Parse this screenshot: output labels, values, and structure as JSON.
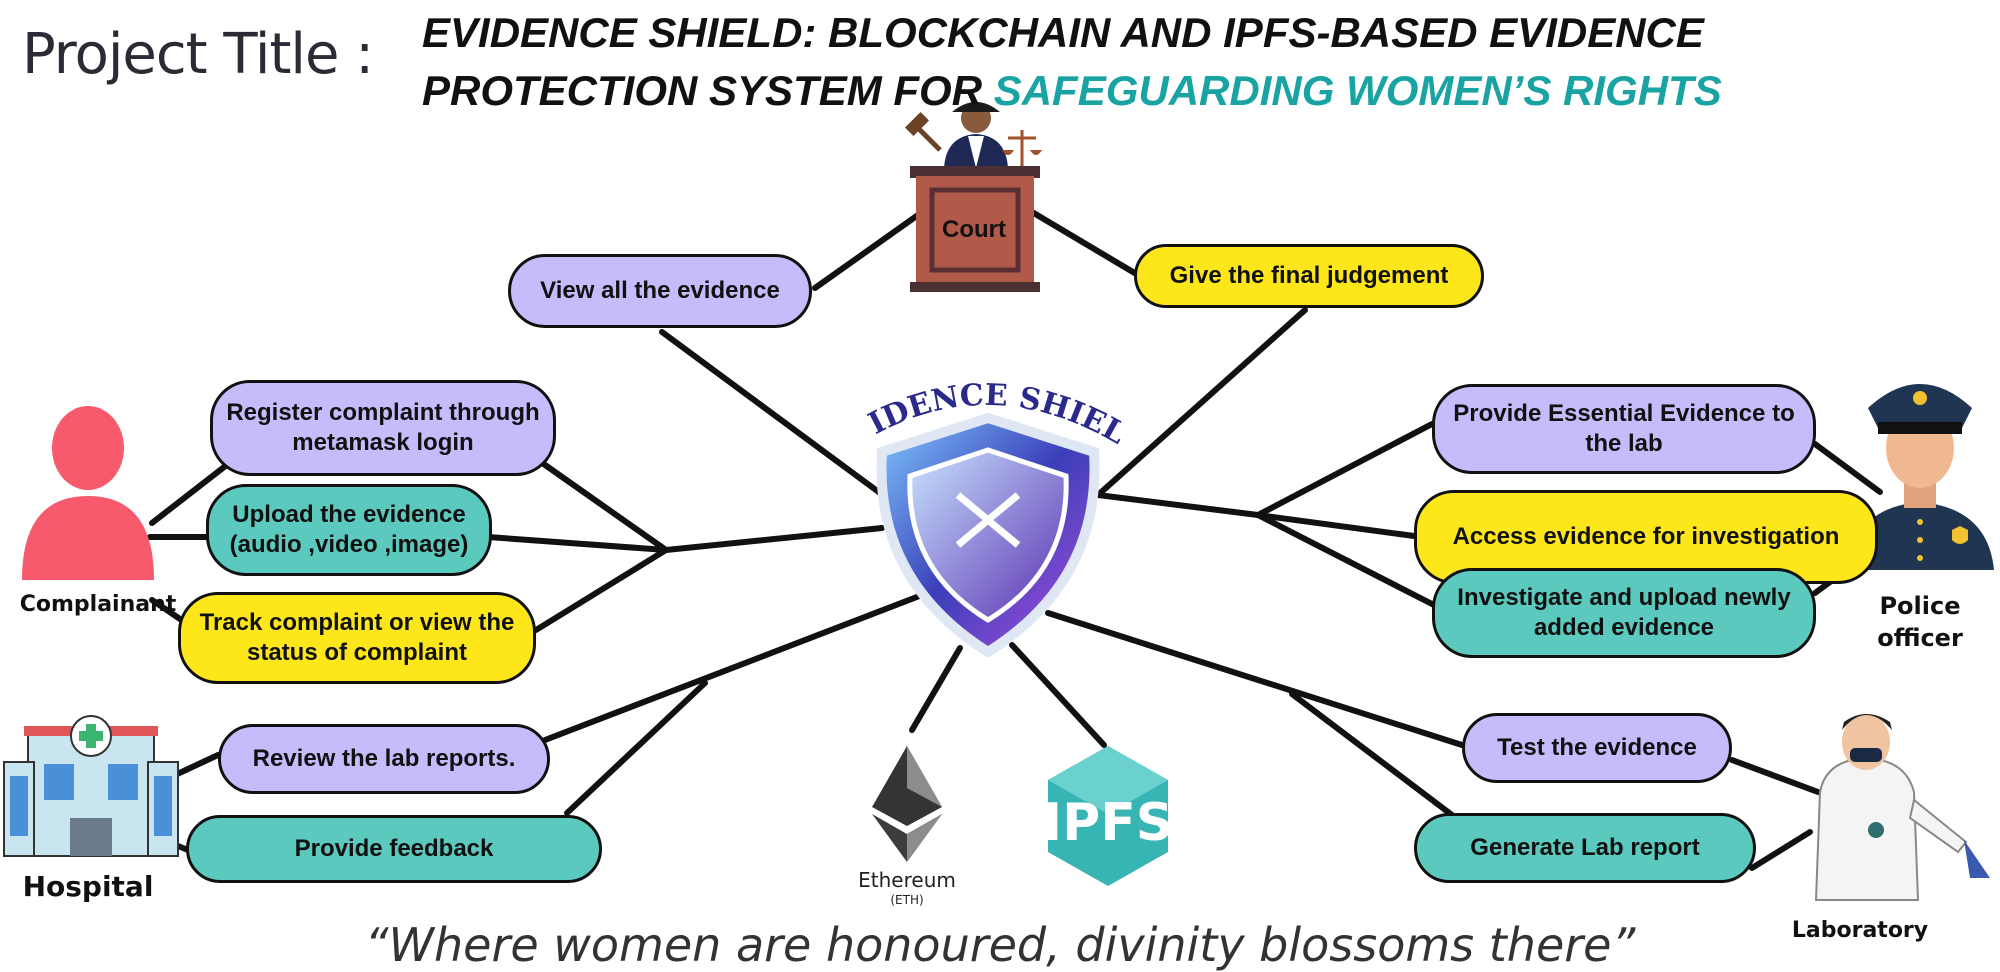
{
  "header": {
    "project_label": "Project Title :",
    "title_line1": "EVIDENCE SHIELD: BLOCKCHAIN AND IPFS-BASED EVIDENCE",
    "title_line2_prefix": "PROTECTION SYSTEM FOR ",
    "title_line2_highlight": "SAFEGUARDING WOMEN’S RIGHTS"
  },
  "center": {
    "logo_text": "EVIDENCE SHIELD"
  },
  "court": {
    "label": "Court",
    "actions": {
      "view": "View  all the evidence",
      "judgement": "Give the final judgement"
    }
  },
  "complainant": {
    "label": "Complainant",
    "actions": {
      "register": "Register complaint through metamask login",
      "upload": "Upload the evidence (audio ,video ,image)",
      "track": "Track complaint or view the status of complaint"
    }
  },
  "police": {
    "label_line1": "Police",
    "label_line2": "officer",
    "actions": {
      "provide": "Provide Essential Evidence to the lab",
      "access": "Access evidence for investigation",
      "investigate": "Investigate and upload newly added evidence"
    }
  },
  "hospital": {
    "label": "Hospital",
    "actions": {
      "review": "Review the lab reports.",
      "feedback": "Provide feedback"
    }
  },
  "laboratory": {
    "label": "Laboratory",
    "actions": {
      "test": "Test the evidence",
      "report": "Generate Lab report"
    }
  },
  "tech": {
    "ethereum_label": "Ethereum",
    "ethereum_sub": "(ETH)",
    "ipfs_label": "IPFS"
  },
  "footer": {
    "quote": "“Where women are honoured, divinity blossoms there”"
  },
  "colors": {
    "purple": "#c6bcfb",
    "teal": "#5bc9bd",
    "yellow": "#fde71b",
    "highlight": "#1aa3a3"
  }
}
